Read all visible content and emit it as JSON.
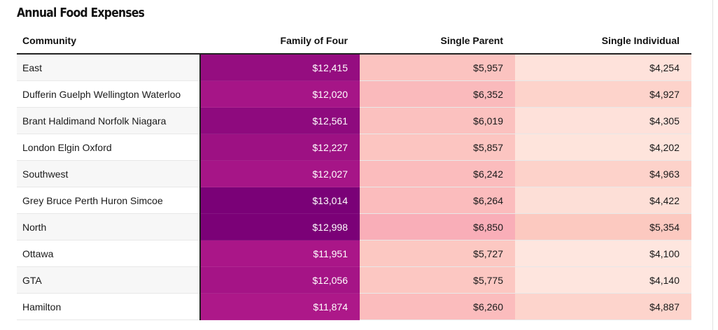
{
  "colors": {
    "family_low": "#ad1889",
    "family_high": "#7a0177",
    "single_parent_low": "#fcc8c2",
    "single_parent_high": "#f9aeb8",
    "single_individual_low": "#fee6df",
    "single_individual_high": "#fcc9c0"
  },
  "chart_data": {
    "type": "table",
    "title": "Annual Food Expenses",
    "columns": [
      "Community",
      "Family of Four",
      "Single Parent",
      "Single Individual"
    ],
    "rows": [
      {
        "community": "East",
        "family": "$12,415",
        "parent": "$5,957",
        "individual": "$4,254"
      },
      {
        "community": "Dufferin Guelph Wellington Waterloo",
        "family": "$12,020",
        "parent": "$6,352",
        "individual": "$4,927"
      },
      {
        "community": "Brant Haldimand Norfolk Niagara",
        "family": "$12,561",
        "parent": "$6,019",
        "individual": "$4,305"
      },
      {
        "community": "London Elgin Oxford",
        "family": "$12,227",
        "parent": "$5,857",
        "individual": "$4,202"
      },
      {
        "community": "Southwest",
        "family": "$12,027",
        "parent": "$6,242",
        "individual": "$4,963"
      },
      {
        "community": "Grey Bruce Perth Huron Simcoe",
        "family": "$13,014",
        "parent": "$6,264",
        "individual": "$4,422"
      },
      {
        "community": "North",
        "family": "$12,998",
        "parent": "$6,850",
        "individual": "$5,354"
      },
      {
        "community": "Ottawa",
        "family": "$11,951",
        "parent": "$5,727",
        "individual": "$4,100"
      },
      {
        "community": "GTA",
        "family": "$12,056",
        "parent": "$5,775",
        "individual": "$4,140"
      },
      {
        "community": "Hamilton",
        "family": "$11,874",
        "parent": "$6,260",
        "individual": "$4,887"
      }
    ]
  }
}
